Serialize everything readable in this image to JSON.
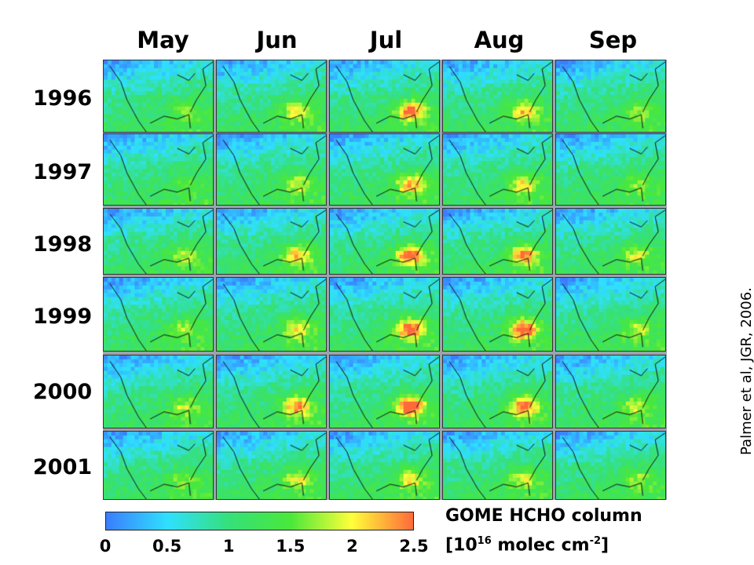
{
  "months": [
    "May",
    "Jun",
    "Jul",
    "Aug",
    "Sep"
  ],
  "years": [
    "1996",
    "1997",
    "1998",
    "1999",
    "2000",
    "2001"
  ],
  "colorbar": {
    "ticks": [
      "0",
      "0.5",
      "1",
      "1.5",
      "2",
      "2.5"
    ],
    "tick_values": [
      0,
      0.5,
      1,
      1.5,
      2,
      2.5
    ],
    "range": [
      0,
      2.5
    ],
    "colors": [
      "#3a7dff",
      "#2fe0ff",
      "#35e07a",
      "#49e83a",
      "#ffff3a",
      "#ff6a3a"
    ],
    "title": "GOME HCHO column",
    "unit_prefix": "[10",
    "unit_exp1": "16",
    "unit_mid": " molec cm",
    "unit_exp2": "-2",
    "unit_suffix": "]"
  },
  "citation": "Palmer et al, JGR, 2006.",
  "map_intensity": {
    "1996": [
      0.25,
      0.55,
      0.85,
      0.65,
      0.35
    ],
    "1997": [
      0.2,
      0.45,
      0.7,
      0.55,
      0.3
    ],
    "1998": [
      0.4,
      0.7,
      0.95,
      0.8,
      0.45
    ],
    "1999": [
      0.35,
      0.55,
      0.9,
      0.95,
      0.4
    ],
    "2000": [
      0.4,
      0.75,
      1.0,
      0.85,
      0.45
    ],
    "2001": [
      0.3,
      0.5,
      0.55,
      0.45,
      0.35
    ]
  }
}
